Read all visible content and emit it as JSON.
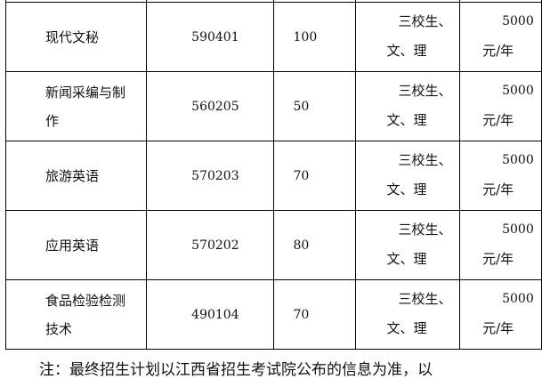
{
  "rows": [
    {
      "name": "",
      "code": "",
      "count": "",
      "req1": "",
      "req2": "",
      "fee1": "",
      "fee2": ""
    },
    {
      "name": "现代文秘",
      "code": "590401",
      "count": "100",
      "req1": "三校生、",
      "req2": "文、理",
      "fee1": "5000",
      "fee2": "元/年"
    },
    {
      "name": "新闻采编与制作",
      "code": "560205",
      "count": "50",
      "req1": "三校生、",
      "req2": "文、理",
      "fee1": "5000",
      "fee2": "元/年"
    },
    {
      "name": "旅游英语",
      "code": "570203",
      "count": "70",
      "req1": "三校生、",
      "req2": "文、理",
      "fee1": "5000",
      "fee2": "元/年"
    },
    {
      "name": "应用英语",
      "code": "570202",
      "count": "80",
      "req1": "三校生、",
      "req2": "文、理",
      "fee1": "5000",
      "fee2": "元/年"
    },
    {
      "name": "食品检验检测技术",
      "code": "490104",
      "count": "70",
      "req1": "三校生、",
      "req2": "文、理",
      "fee1": "5000",
      "fee2": "元/年"
    }
  ],
  "note": "注：最终招生计划以江西省招生考试院公布的信息为准，以"
}
